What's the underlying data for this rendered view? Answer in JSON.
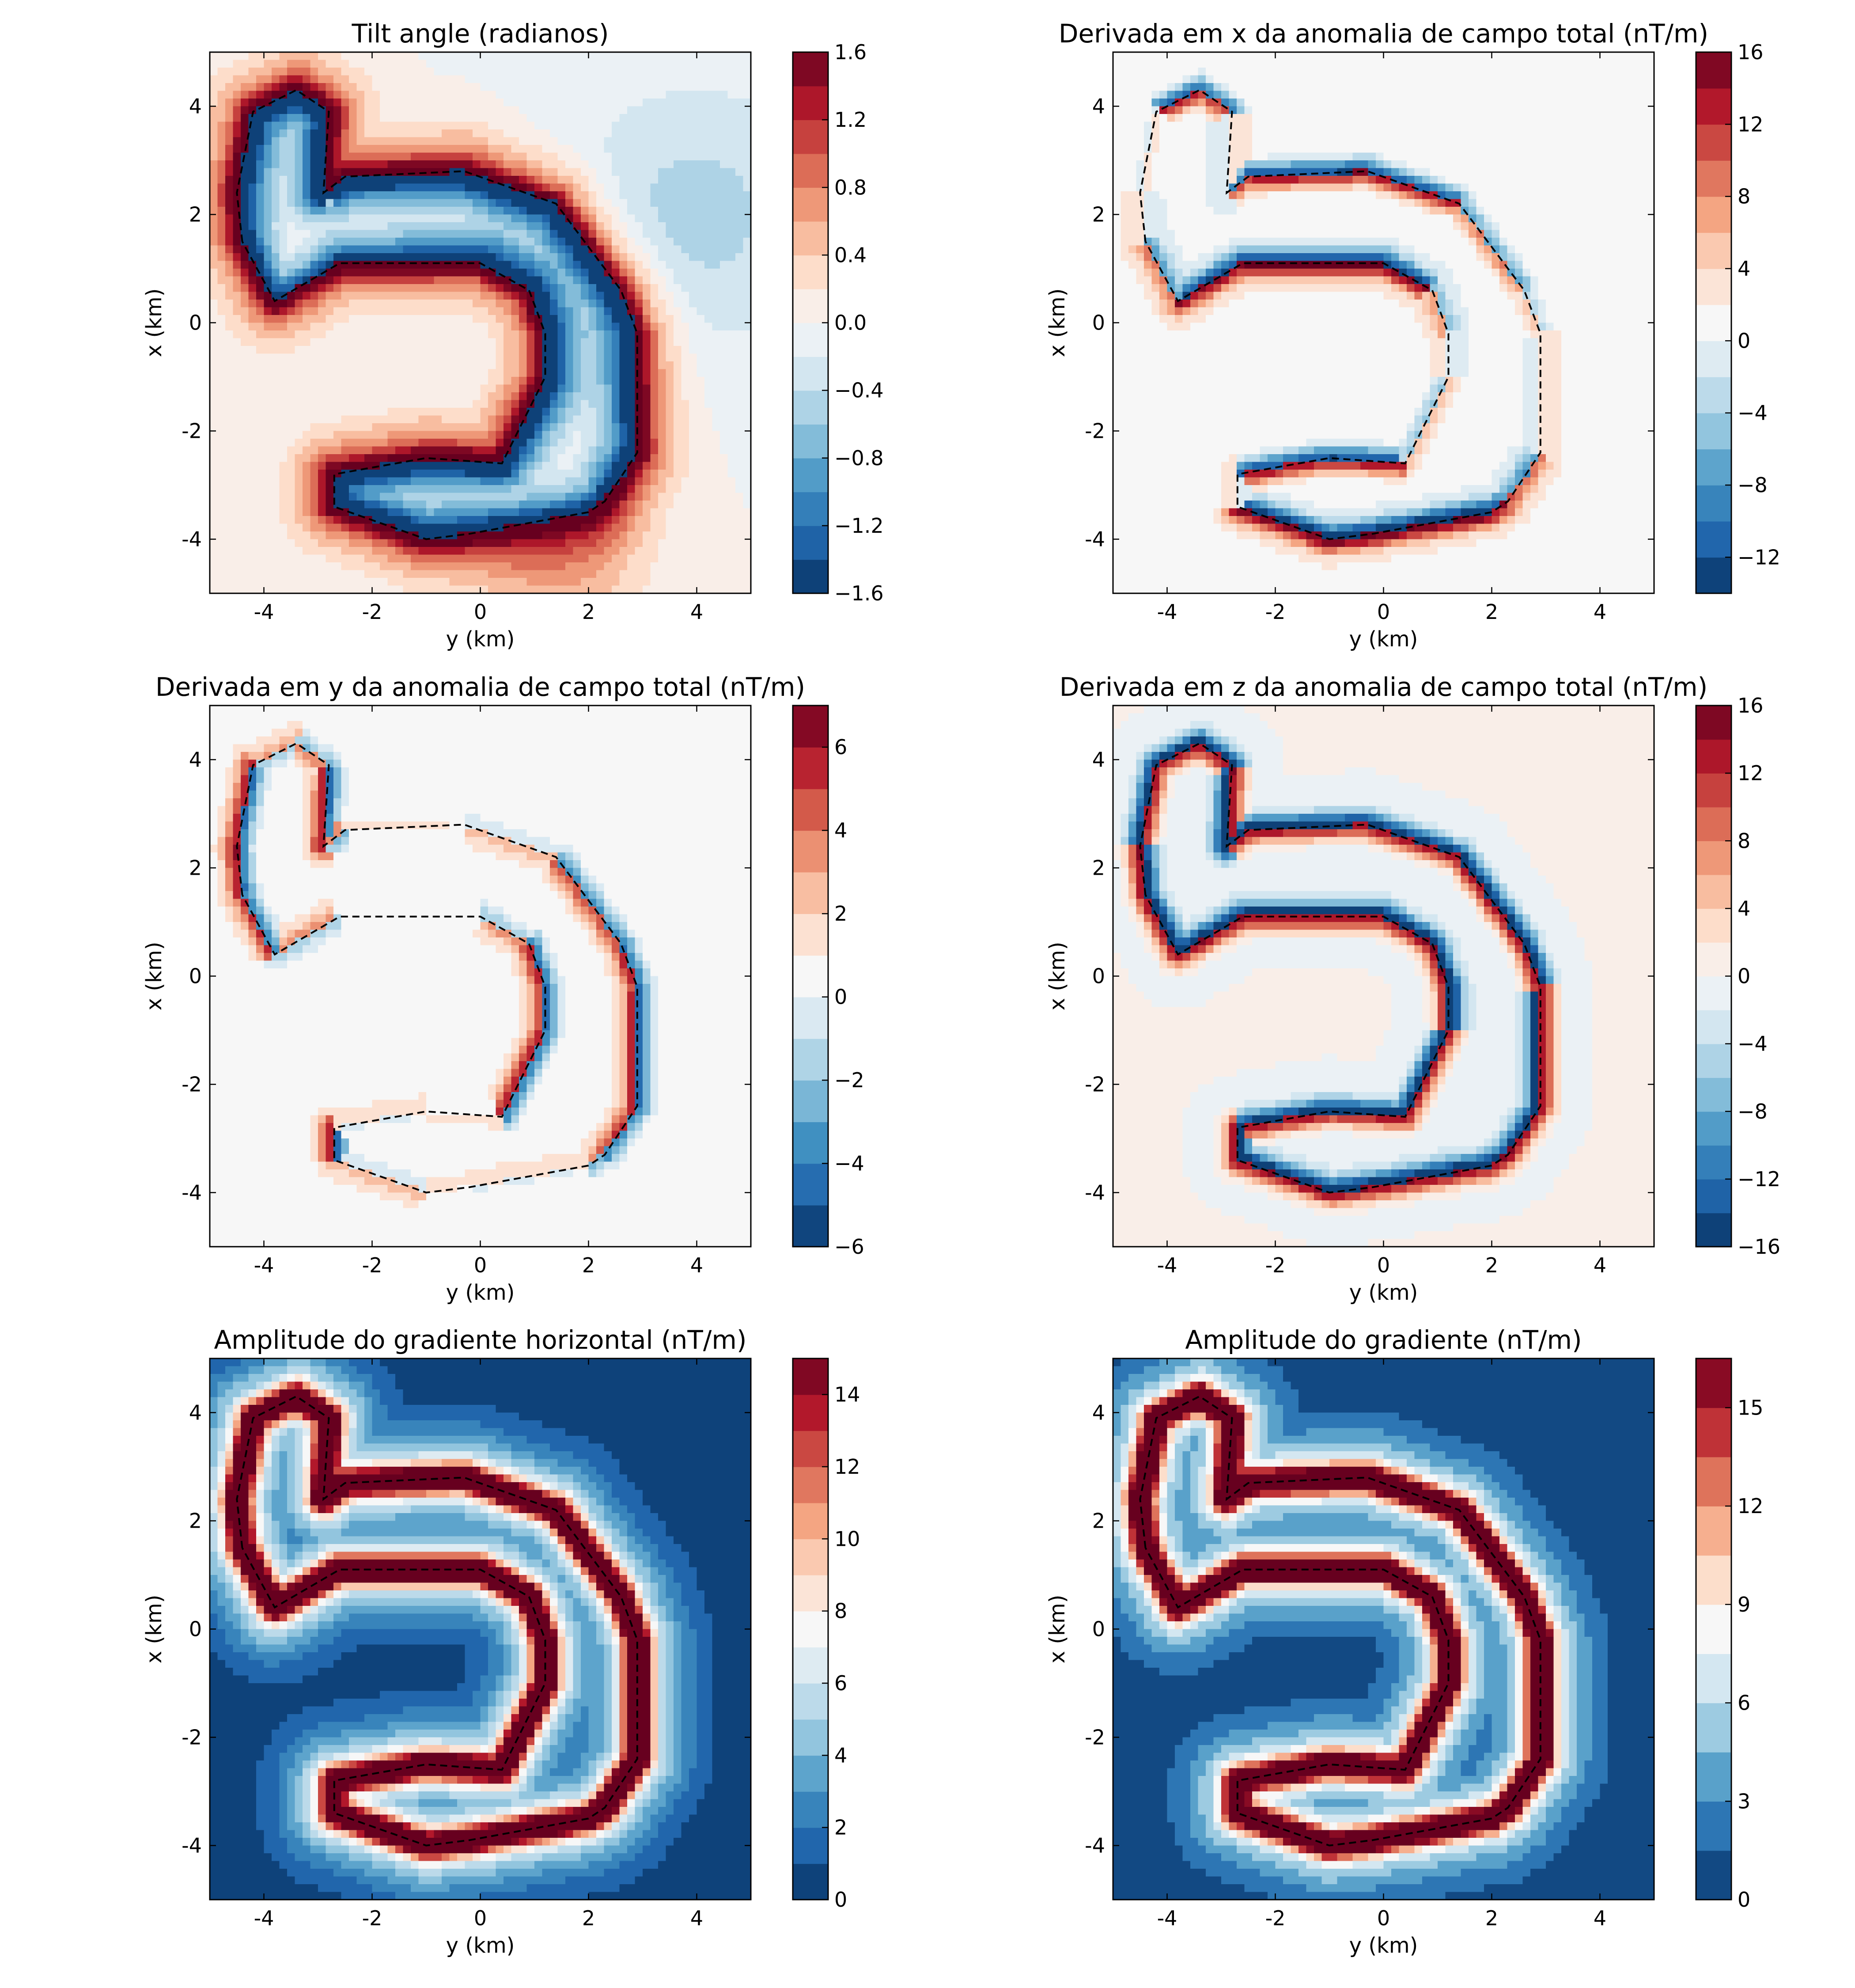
{
  "chart_data": [
    {
      "type": "heatmap",
      "title": "Tilt angle (radianos)",
      "xlabel": "y (km)",
      "ylabel": "x (km)",
      "xlim": [
        -5,
        5
      ],
      "ylim": [
        -5,
        5
      ],
      "x_ticks": [
        "-4",
        "-2",
        "0",
        "2",
        "4"
      ],
      "y_ticks": [
        "-4",
        "-2",
        "0",
        "2",
        "4"
      ],
      "colormap": "RdBu_r",
      "colorbar": {
        "min": -1.6,
        "max": 1.6,
        "levels": 16,
        "tick_values": [
          -1.6,
          -1.2,
          -0.8,
          -0.4,
          0.0,
          0.4,
          0.8,
          1.2,
          1.6
        ],
        "tick_labels": [
          "−1.6",
          "−1.2",
          "−0.8",
          "−0.4",
          "0.0",
          "0.4",
          "0.8",
          "1.2",
          "1.6"
        ]
      },
      "field": "tilt"
    },
    {
      "type": "heatmap",
      "title": "Derivada em x da anomalia de campo total (nT/m)",
      "xlabel": "y (km)",
      "ylabel": "x (km)",
      "xlim": [
        -5,
        5
      ],
      "ylim": [
        -5,
        5
      ],
      "x_ticks": [
        "-4",
        "-2",
        "0",
        "2",
        "4"
      ],
      "y_ticks": [
        "-4",
        "-2",
        "0",
        "2",
        "4"
      ],
      "colormap": "RdBu_r",
      "colorbar": {
        "min": -14,
        "max": 16,
        "levels": 15,
        "tick_values": [
          -12,
          -8,
          -4,
          0,
          4,
          8,
          12,
          16
        ],
        "tick_labels": [
          "−12",
          "−8",
          "−4",
          "0",
          "4",
          "8",
          "12",
          "16"
        ]
      },
      "field": "dx"
    },
    {
      "type": "heatmap",
      "title": "Derivada em y da anomalia de campo total (nT/m)",
      "xlabel": "y (km)",
      "ylabel": "x (km)",
      "xlim": [
        -5,
        5
      ],
      "ylim": [
        -5,
        5
      ],
      "x_ticks": [
        "-4",
        "-2",
        "0",
        "2",
        "4"
      ],
      "y_ticks": [
        "-4",
        "-2",
        "0",
        "2",
        "4"
      ],
      "colormap": "RdBu_r",
      "colorbar": {
        "min": -6,
        "max": 7,
        "levels": 13,
        "tick_values": [
          -6,
          -4,
          -2,
          0,
          2,
          4,
          6
        ],
        "tick_labels": [
          "−6",
          "−4",
          "−2",
          "0",
          "2",
          "4",
          "6"
        ]
      },
      "field": "dy"
    },
    {
      "type": "heatmap",
      "title": "Derivada em z da anomalia de campo total (nT/m)",
      "xlabel": "y (km)",
      "ylabel": "x (km)",
      "xlim": [
        -5,
        5
      ],
      "ylim": [
        -5,
        5
      ],
      "x_ticks": [
        "-4",
        "-2",
        "0",
        "2",
        "4"
      ],
      "y_ticks": [
        "-4",
        "-2",
        "0",
        "2",
        "4"
      ],
      "colormap": "RdBu_r",
      "colorbar": {
        "min": -16,
        "max": 16,
        "levels": 16,
        "tick_values": [
          -16,
          -12,
          -8,
          -4,
          0,
          4,
          8,
          12,
          16
        ],
        "tick_labels": [
          "−16",
          "−12",
          "−8",
          "−4",
          "0",
          "4",
          "8",
          "12",
          "16"
        ]
      },
      "field": "dz"
    },
    {
      "type": "heatmap",
      "title": "Amplitude do gradiente horizontal (nT/m)",
      "xlabel": "y (km)",
      "ylabel": "x (km)",
      "xlim": [
        -5,
        5
      ],
      "ylim": [
        -5,
        5
      ],
      "x_ticks": [
        "-4",
        "-2",
        "0",
        "2",
        "4"
      ],
      "y_ticks": [
        "-4",
        "-2",
        "0",
        "2",
        "4"
      ],
      "colormap": "RdBu_r",
      "colorbar": {
        "min": 0,
        "max": 15,
        "levels": 15,
        "tick_values": [
          0,
          2,
          4,
          6,
          8,
          10,
          12,
          14
        ],
        "tick_labels": [
          "0",
          "2",
          "4",
          "6",
          "8",
          "10",
          "12",
          "14"
        ]
      },
      "field": "hgrad"
    },
    {
      "type": "heatmap",
      "title": "Amplitude do gradiente (nT/m)",
      "xlabel": "y (km)",
      "ylabel": "x (km)",
      "xlim": [
        -5,
        5
      ],
      "ylim": [
        -5,
        5
      ],
      "x_ticks": [
        "-4",
        "-2",
        "0",
        "2",
        "4"
      ],
      "y_ticks": [
        "-4",
        "-2",
        "0",
        "2",
        "4"
      ],
      "colormap": "RdBu_r",
      "colorbar": {
        "min": 0,
        "max": 16.5,
        "levels": 11,
        "tick_values": [
          0,
          3,
          6,
          9,
          12,
          15
        ],
        "tick_labels": [
          "0",
          "3",
          "6",
          "9",
          "12",
          "15"
        ]
      },
      "field": "tgrad"
    }
  ],
  "source_outline": {
    "description_units": "km",
    "loops": [
      [
        [
          -4.4,
          1.5
        ],
        [
          -4.5,
          2.4
        ],
        [
          -4.2,
          3.9
        ],
        [
          -3.4,
          4.3
        ],
        [
          -2.8,
          3.9
        ],
        [
          -2.9,
          2.4
        ],
        [
          -2.5,
          2.7
        ],
        [
          -0.3,
          2.8
        ],
        [
          1.4,
          2.2
        ],
        [
          2.6,
          0.6
        ],
        [
          2.9,
          -0.2
        ],
        [
          2.9,
          -2.4
        ],
        [
          2.3,
          -3.3
        ],
        [
          2.0,
          -3.5
        ],
        [
          -0.2,
          -3.9
        ],
        [
          -1.0,
          -4.0
        ],
        [
          -2.7,
          -3.4
        ],
        [
          -2.7,
          -2.8
        ],
        [
          -1.0,
          -2.5
        ],
        [
          0.4,
          -2.6
        ],
        [
          1.2,
          -1.0
        ],
        [
          1.2,
          -0.2
        ],
        [
          0.9,
          0.6
        ],
        [
          0.0,
          1.1
        ],
        [
          -2.6,
          1.1
        ],
        [
          -3.8,
          0.4
        ],
        [
          -4.4,
          1.5
        ]
      ]
    ]
  },
  "colors": {
    "cmap_stops": [
      "#053061",
      "#2166ac",
      "#4393c3",
      "#92c5de",
      "#d1e5f0",
      "#f7f7f7",
      "#fddbc7",
      "#f4a582",
      "#d6604d",
      "#b2182b",
      "#67001f"
    ],
    "outline": "#000000"
  }
}
